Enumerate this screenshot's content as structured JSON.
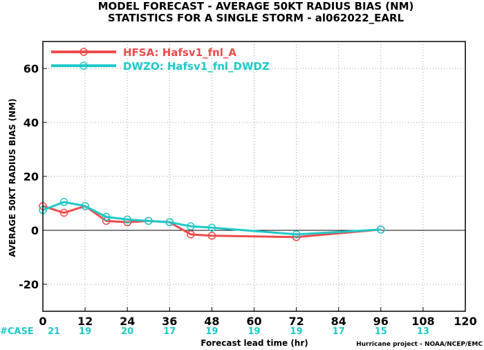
{
  "chart_data": {
    "type": "line",
    "title": "MODEL FORECAST - AVERAGE 50KT RADIUS BIAS (NM)",
    "subtitle": "STATISTICS FOR A SINGLE STORM - al062022_EARL",
    "xlabel": "Forecast lead time (hr)",
    "ylabel": "AVERAGE 50KT RADIUS BIAS (NM)",
    "xlim": [
      0,
      120
    ],
    "ylim": [
      -30,
      70
    ],
    "xticks": [
      0,
      12,
      24,
      36,
      48,
      60,
      72,
      84,
      96,
      108,
      120
    ],
    "yticks": [
      -20,
      0,
      20,
      40,
      60
    ],
    "grid": true,
    "legend": "top-left",
    "series": [
      {
        "name": "HFSA: Hafsv1_fnl_A",
        "color": "#ee4b4b",
        "x": [
          0,
          6,
          12,
          18,
          24,
          30,
          36,
          42,
          48,
          72,
          96
        ],
        "y": [
          9,
          6.5,
          9,
          3.5,
          3,
          3.5,
          3,
          -1.5,
          -2,
          -2.5,
          0.3
        ]
      },
      {
        "name": "DWZO: Hafsv1_fnl_DWDZ",
        "color": "#1ec8c8",
        "x": [
          0,
          6,
          12,
          18,
          24,
          30,
          36,
          42,
          48,
          72,
          96
        ],
        "y": [
          7.5,
          10.5,
          9,
          5,
          4,
          3.5,
          3,
          1.5,
          1,
          -1.5,
          0.3
        ]
      }
    ],
    "cases": {
      "label": "#CASE",
      "x": [
        0,
        12,
        24,
        36,
        48,
        60,
        72,
        84,
        96,
        108
      ],
      "values": [
        "21",
        "19",
        "20",
        "17",
        "19",
        "19",
        "19",
        "17",
        "15",
        "13"
      ]
    },
    "credit": "Hurricane project - NOAA/NCEP/EMC"
  }
}
